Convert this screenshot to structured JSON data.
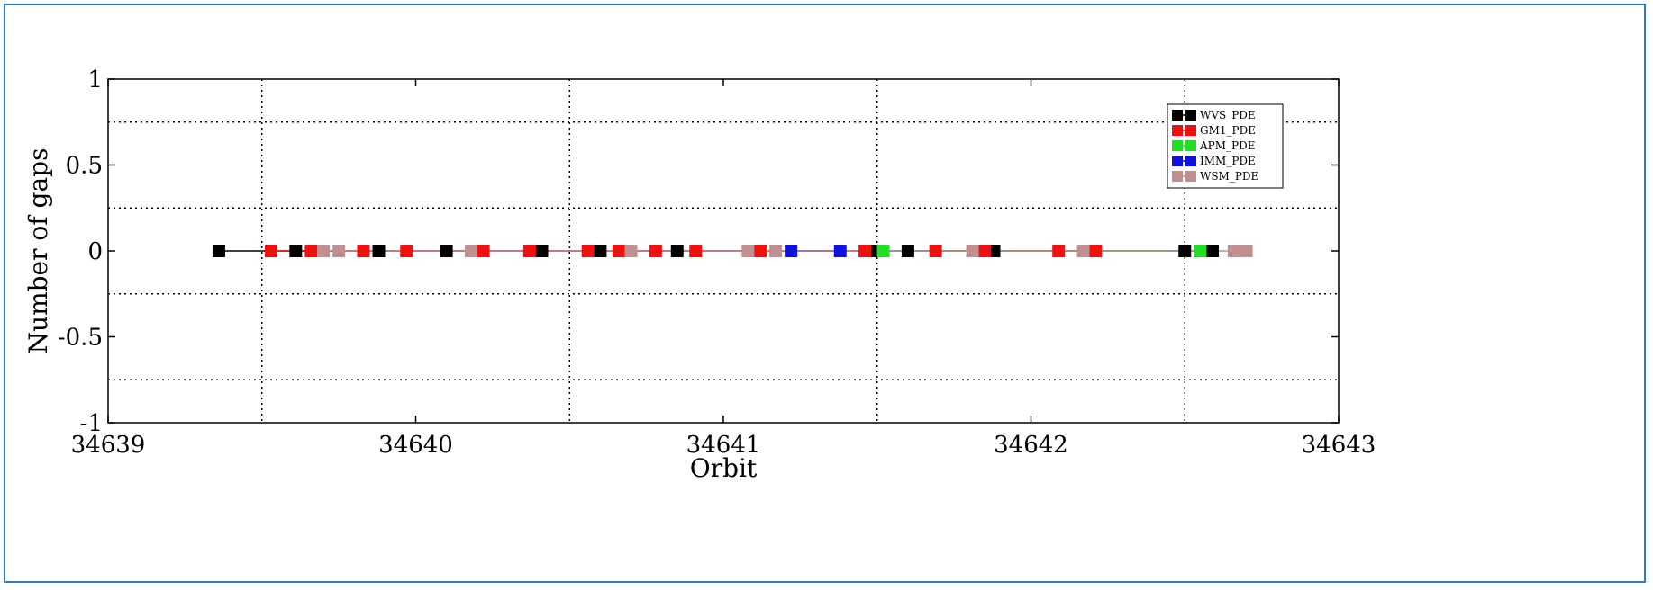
{
  "chart_data": {
    "type": "scatter",
    "title": "",
    "xlabel": "Orbit",
    "ylabel": "Number of gaps",
    "xlim": [
      34639,
      34643
    ],
    "ylim": [
      -1,
      1
    ],
    "x_ticks": [
      34639,
      34640,
      34641,
      34642,
      34643
    ],
    "x_tick_labels": [
      "34639",
      "34640",
      "34641",
      "34642",
      "34643"
    ],
    "y_ticks": [
      -1,
      -0.5,
      0,
      0.5,
      1
    ],
    "y_tick_labels": [
      "-1",
      "-0.5",
      "0",
      "0.5",
      "1"
    ],
    "x_gridlines": [
      34639.5,
      34640.5,
      34641.5,
      34642.5
    ],
    "y_gridlines": [
      -0.75,
      -0.25,
      0.25,
      0.75
    ],
    "grid": true,
    "grid_style": "dotted",
    "legend_position": "top-right",
    "series": [
      {
        "name": "WVS_PDE",
        "color": "#000000",
        "x": [
          34639.36,
          34639.61,
          34639.88,
          34640.1,
          34640.41,
          34640.6,
          34640.85,
          34641.49,
          34641.6,
          34641.88,
          34642.5,
          34642.59
        ],
        "y": [
          0,
          0,
          0,
          0,
          0,
          0,
          0,
          0,
          0,
          0,
          0,
          0
        ]
      },
      {
        "name": "GM1_PDE",
        "color": "#ee1111",
        "x": [
          34639.53,
          34639.66,
          34639.83,
          34639.97,
          34640.22,
          34640.37,
          34640.56,
          34640.66,
          34640.78,
          34640.91,
          34641.12,
          34641.46,
          34641.69,
          34641.85,
          34642.09,
          34642.21
        ],
        "y": [
          0,
          0,
          0,
          0,
          0,
          0,
          0,
          0,
          0,
          0,
          0,
          0,
          0,
          0,
          0,
          0
        ]
      },
      {
        "name": "APM_PDE",
        "color": "#22dd22",
        "x": [
          34641.52,
          34642.55
        ],
        "y": [
          0,
          0
        ]
      },
      {
        "name": "IMM_PDE",
        "color": "#1111dd",
        "x": [
          34641.22,
          34641.38
        ],
        "y": [
          0,
          0
        ]
      },
      {
        "name": "WSM_PDE",
        "color": "#c09090",
        "x": [
          34639.7,
          34639.75,
          34640.18,
          34640.7,
          34641.08,
          34641.17,
          34641.81,
          34642.17,
          34642.66,
          34642.7
        ],
        "y": [
          0,
          0,
          0,
          0,
          0,
          0,
          0,
          0,
          0,
          0
        ]
      }
    ]
  }
}
